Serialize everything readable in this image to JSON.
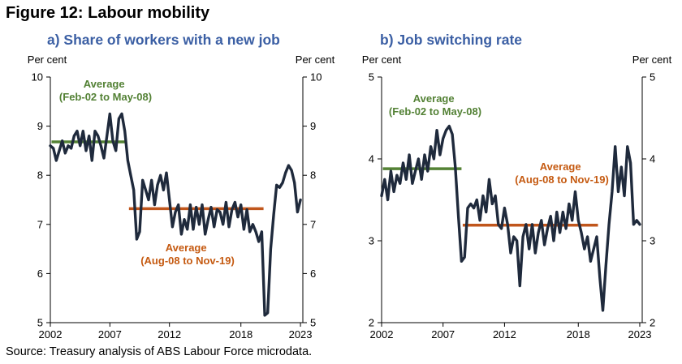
{
  "figure_title": "Figure 12: Labour mobility",
  "source": "Source: Treasury analysis of ABS Labour Force microdata.",
  "colors": {
    "series": "#1f2a3c",
    "avg_pre": "#548235",
    "avg_post": "#c0561c",
    "title": "#3b5fa4"
  },
  "chart_data": [
    {
      "type": "line",
      "title": "a)   Share of workers with a new job",
      "ylabel_left": "Per cent",
      "ylabel_right": "Per cent",
      "ylim": [
        5,
        10
      ],
      "yticks": [
        5,
        6,
        7,
        8,
        9,
        10
      ],
      "xlim": [
        2002,
        2023.2
      ],
      "xticks": [
        2002,
        2007,
        2012,
        2018,
        2023
      ],
      "series": [
        {
          "name": "Share of workers with a new job",
          "x": [
            2002.0,
            2002.25,
            2002.5,
            2002.75,
            2003.0,
            2003.25,
            2003.5,
            2003.75,
            2004.0,
            2004.25,
            2004.5,
            2004.75,
            2005.0,
            2005.25,
            2005.5,
            2005.75,
            2006.0,
            2006.25,
            2006.5,
            2006.75,
            2007.0,
            2007.25,
            2007.5,
            2007.75,
            2008.0,
            2008.25,
            2008.5,
            2008.75,
            2009.0,
            2009.25,
            2009.5,
            2009.75,
            2010.0,
            2010.25,
            2010.5,
            2010.75,
            2011.0,
            2011.25,
            2011.5,
            2011.75,
            2012.0,
            2012.25,
            2012.5,
            2012.75,
            2013.0,
            2013.25,
            2013.5,
            2013.75,
            2014.0,
            2014.25,
            2014.5,
            2014.75,
            2015.0,
            2015.25,
            2015.5,
            2015.75,
            2016.0,
            2016.25,
            2016.5,
            2016.75,
            2017.0,
            2017.25,
            2017.5,
            2017.75,
            2018.0,
            2018.25,
            2018.5,
            2018.75,
            2019.0,
            2019.25,
            2019.5,
            2019.75,
            2020.0,
            2020.25,
            2020.5,
            2020.75,
            2021.0,
            2021.25,
            2021.5,
            2021.75,
            2022.0,
            2022.25,
            2022.5,
            2022.75,
            2023.0
          ],
          "values": [
            8.6,
            8.55,
            8.3,
            8.5,
            8.7,
            8.45,
            8.6,
            8.55,
            8.8,
            8.9,
            8.6,
            8.9,
            8.5,
            8.8,
            8.3,
            8.9,
            8.8,
            8.6,
            8.35,
            8.8,
            9.25,
            8.7,
            8.5,
            9.15,
            9.25,
            8.9,
            8.3,
            8.0,
            7.7,
            6.7,
            6.85,
            7.9,
            7.7,
            7.5,
            7.9,
            7.4,
            7.8,
            8.0,
            7.7,
            8.05,
            7.5,
            6.95,
            7.25,
            7.4,
            6.8,
            7.1,
            6.9,
            7.4,
            6.9,
            7.35,
            7.0,
            7.4,
            6.8,
            7.1,
            7.35,
            6.95,
            7.3,
            7.25,
            7.0,
            7.45,
            6.95,
            7.3,
            7.45,
            7.15,
            7.4,
            6.9,
            7.3,
            6.85,
            7.0,
            6.85,
            6.65,
            6.85,
            5.15,
            5.2,
            6.5,
            7.2,
            7.8,
            7.75,
            7.85,
            8.05,
            8.2,
            8.1,
            7.85,
            7.25,
            7.5
          ]
        }
      ],
      "averages": [
        {
          "label": [
            "Average",
            "(Feb-02 to May-08)"
          ],
          "value": 8.68,
          "x_range": [
            2002.1,
            2008.4
          ]
        },
        {
          "label": [
            "Average",
            "(Aug-08 to Nov-19)"
          ],
          "value": 7.32,
          "x_range": [
            2008.6,
            2019.9
          ]
        }
      ]
    },
    {
      "type": "line",
      "title": "b)   Job switching rate",
      "ylabel_left": "Per cent",
      "ylabel_right": "Per cent",
      "ylim": [
        2,
        5
      ],
      "yticks": [
        2,
        3,
        4,
        5
      ],
      "xlim": [
        2002,
        2023.2
      ],
      "xticks": [
        2002,
        2007,
        2012,
        2018,
        2023
      ],
      "series": [
        {
          "name": "Job switching rate",
          "x": [
            2002.0,
            2002.25,
            2002.5,
            2002.75,
            2003.0,
            2003.25,
            2003.5,
            2003.75,
            2004.0,
            2004.25,
            2004.5,
            2004.75,
            2005.0,
            2005.25,
            2005.5,
            2005.75,
            2006.0,
            2006.25,
            2006.5,
            2006.75,
            2007.0,
            2007.25,
            2007.5,
            2007.75,
            2008.0,
            2008.25,
            2008.5,
            2008.75,
            2009.0,
            2009.25,
            2009.5,
            2009.75,
            2010.0,
            2010.25,
            2010.5,
            2010.75,
            2011.0,
            2011.25,
            2011.5,
            2011.75,
            2012.0,
            2012.25,
            2012.5,
            2012.75,
            2013.0,
            2013.25,
            2013.5,
            2013.75,
            2014.0,
            2014.25,
            2014.5,
            2014.75,
            2015.0,
            2015.25,
            2015.5,
            2015.75,
            2016.0,
            2016.25,
            2016.5,
            2016.75,
            2017.0,
            2017.25,
            2017.5,
            2017.75,
            2018.0,
            2018.25,
            2018.5,
            2018.75,
            2019.0,
            2019.25,
            2019.5,
            2019.75,
            2020.0,
            2020.25,
            2020.5,
            2020.75,
            2021.0,
            2021.25,
            2021.5,
            2021.75,
            2022.0,
            2022.25,
            2022.5,
            2022.75,
            2023.0
          ],
          "values": [
            3.55,
            3.75,
            3.5,
            3.85,
            3.6,
            3.8,
            3.7,
            3.95,
            3.75,
            4.05,
            3.7,
            3.85,
            4.0,
            3.75,
            4.05,
            3.85,
            4.15,
            4.0,
            4.35,
            4.05,
            4.25,
            4.35,
            4.4,
            4.3,
            3.9,
            3.3,
            2.75,
            2.8,
            3.4,
            3.45,
            3.4,
            3.5,
            3.25,
            3.55,
            3.35,
            3.75,
            3.45,
            3.55,
            3.2,
            3.15,
            3.4,
            3.2,
            2.85,
            3.05,
            3.0,
            2.45,
            3.05,
            3.2,
            2.9,
            3.2,
            2.85,
            3.1,
            3.25,
            2.95,
            3.15,
            3.3,
            3.0,
            3.35,
            3.1,
            3.35,
            3.15,
            3.45,
            3.25,
            3.6,
            3.25,
            3.1,
            2.9,
            3.05,
            2.75,
            2.9,
            3.05,
            2.55,
            2.15,
            2.7,
            3.2,
            3.6,
            4.15,
            3.6,
            3.9,
            3.55,
            4.15,
            3.95,
            3.2,
            3.25,
            3.2
          ]
        }
      ],
      "averages": [
        {
          "label": [
            "Average",
            "(Feb-02 to May-08)"
          ],
          "value": 3.88,
          "x_range": [
            2002.1,
            2008.5
          ]
        },
        {
          "label": [
            "Average",
            "(Aug-08 to Nov-19)"
          ],
          "value": 3.19,
          "x_range": [
            2008.6,
            2019.6
          ]
        }
      ]
    }
  ]
}
